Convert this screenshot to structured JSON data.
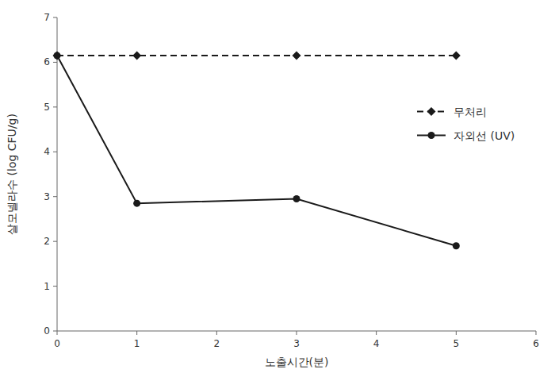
{
  "chart_data": {
    "type": "line",
    "xlabel": "노출시간(분)",
    "ylabel": "살모넬라수 (log CFU/g)",
    "x": [
      0,
      1,
      3,
      5
    ],
    "series": [
      {
        "name": "무처리",
        "color": "#1a1a1a",
        "values": [
          6.15,
          6.15,
          6.15,
          6.15
        ],
        "marker": "diamond",
        "line_style": "dashed"
      },
      {
        "name": "자외선 (UV)",
        "color": "#1a1a1a",
        "values": [
          6.15,
          2.85,
          2.95,
          1.9
        ],
        "marker": "circle",
        "line_style": "solid"
      }
    ],
    "xlim": [
      0,
      6
    ],
    "ylim": [
      0,
      7
    ],
    "xticks": [
      0,
      1,
      2,
      3,
      4,
      5,
      6
    ],
    "yticks": [
      0,
      1,
      2,
      3,
      4,
      5,
      6,
      7
    ],
    "grid": false,
    "legend": "upper right"
  }
}
